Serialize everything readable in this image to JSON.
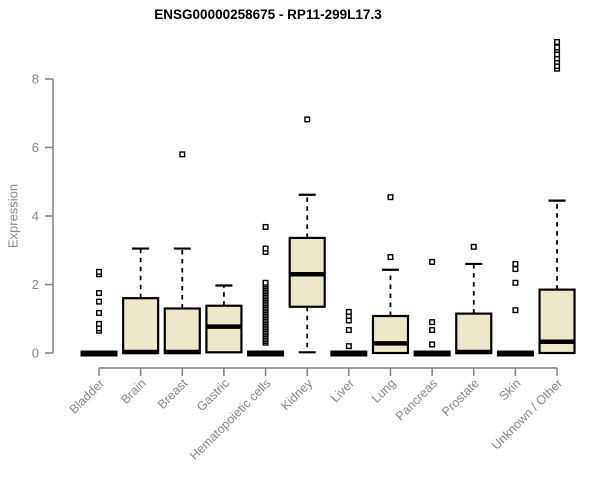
{
  "page": {
    "background": "#ffffff"
  },
  "chart_data": {
    "type": "boxplot",
    "title": "ENSG00000258675 - RP11-299L17.3",
    "ylabel": "Expression",
    "xlabel": "",
    "ylim": [
      0,
      9.3
    ],
    "yticks": [
      0,
      2,
      4,
      6,
      8
    ],
    "grid": false,
    "legend": false,
    "categories": [
      "Bladder",
      "Brain",
      "Breast",
      "Gastric",
      "Hematopoietic cells",
      "Kidney",
      "Liver",
      "Lung",
      "Pancreas",
      "Prostate",
      "Skin",
      "Unknown / Other"
    ],
    "boxes": [
      {
        "category": "Bladder",
        "flat": true,
        "q1": 0,
        "median": 0,
        "q3": 0,
        "whisker_low": 0,
        "whisker_high": 0,
        "outliers": [
          0.65,
          0.72,
          0.85,
          1.17,
          1.5,
          1.75,
          2.3,
          2.37
        ]
      },
      {
        "category": "Brain",
        "flat": false,
        "q1": 0,
        "median": 0.03,
        "q3": 1.6,
        "whisker_low": 0,
        "whisker_high": 3.05,
        "outliers": []
      },
      {
        "category": "Breast",
        "flat": false,
        "q1": 0,
        "median": 0.03,
        "q3": 1.3,
        "whisker_low": 0,
        "whisker_high": 3.05,
        "outliers": [
          5.8
        ]
      },
      {
        "category": "Gastric",
        "flat": false,
        "q1": 0.02,
        "median": 0.77,
        "q3": 1.38,
        "whisker_low": 0.02,
        "whisker_high": 1.97,
        "outliers": []
      },
      {
        "category": "Hematopoietic cells",
        "flat": true,
        "q1": 0,
        "median": 0,
        "q3": 0,
        "whisker_low": 0,
        "whisker_high": 0,
        "outliers": [
          0.3,
          0.35,
          0.4,
          0.45,
          0.5,
          0.55,
          0.6,
          0.65,
          0.7,
          0.75,
          0.8,
          0.85,
          0.9,
          0.95,
          1.0,
          1.05,
          1.1,
          1.15,
          1.2,
          1.25,
          1.3,
          1.35,
          1.4,
          1.45,
          1.5,
          1.55,
          1.6,
          1.65,
          1.7,
          1.75,
          1.8,
          1.85,
          1.9,
          1.95,
          2.0,
          2.05,
          2.95,
          3.05,
          3.68
        ]
      },
      {
        "category": "Kidney",
        "flat": false,
        "q1": 1.35,
        "median": 2.3,
        "q3": 3.36,
        "whisker_low": 0.02,
        "whisker_high": 4.62,
        "outliers": [
          6.82
        ]
      },
      {
        "category": "Liver",
        "flat": true,
        "q1": 0,
        "median": 0,
        "q3": 0,
        "whisker_low": 0,
        "whisker_high": 0,
        "outliers": [
          0.2,
          0.67,
          0.95,
          1.08,
          1.2
        ]
      },
      {
        "category": "Lung",
        "flat": false,
        "q1": 0,
        "median": 0.28,
        "q3": 1.08,
        "whisker_low": 0,
        "whisker_high": 2.43,
        "outliers": [
          2.8,
          4.55
        ]
      },
      {
        "category": "Pancreas",
        "flat": true,
        "q1": 0,
        "median": 0,
        "q3": 0,
        "whisker_low": 0,
        "whisker_high": 0,
        "outliers": [
          0.25,
          0.67,
          0.9,
          2.66
        ]
      },
      {
        "category": "Prostate",
        "flat": false,
        "q1": 0,
        "median": 0.03,
        "q3": 1.15,
        "whisker_low": 0,
        "whisker_high": 2.6,
        "outliers": [
          3.1
        ]
      },
      {
        "category": "Skin",
        "flat": true,
        "q1": 0,
        "median": 0,
        "q3": 0,
        "whisker_low": 0,
        "whisker_high": 0,
        "outliers": [
          1.25,
          2.05,
          2.45,
          2.6
        ]
      },
      {
        "category": "Unknown / Other",
        "flat": false,
        "q1": 0,
        "median": 0.33,
        "q3": 1.85,
        "whisker_low": 0,
        "whisker_high": 4.45,
        "outliers": [
          8.3,
          8.38,
          8.5,
          8.6,
          8.72,
          8.85,
          8.92,
          9.08
        ]
      }
    ],
    "colors": {
      "box_fill": "#EDE7CC",
      "box_stroke": "#000000",
      "median": "#000000",
      "axis": "#7f7f7f",
      "tick_text": "#878787",
      "title_text": "#000000",
      "outlier_stroke": "#000000",
      "outlier_fill": "#ffffff"
    }
  }
}
